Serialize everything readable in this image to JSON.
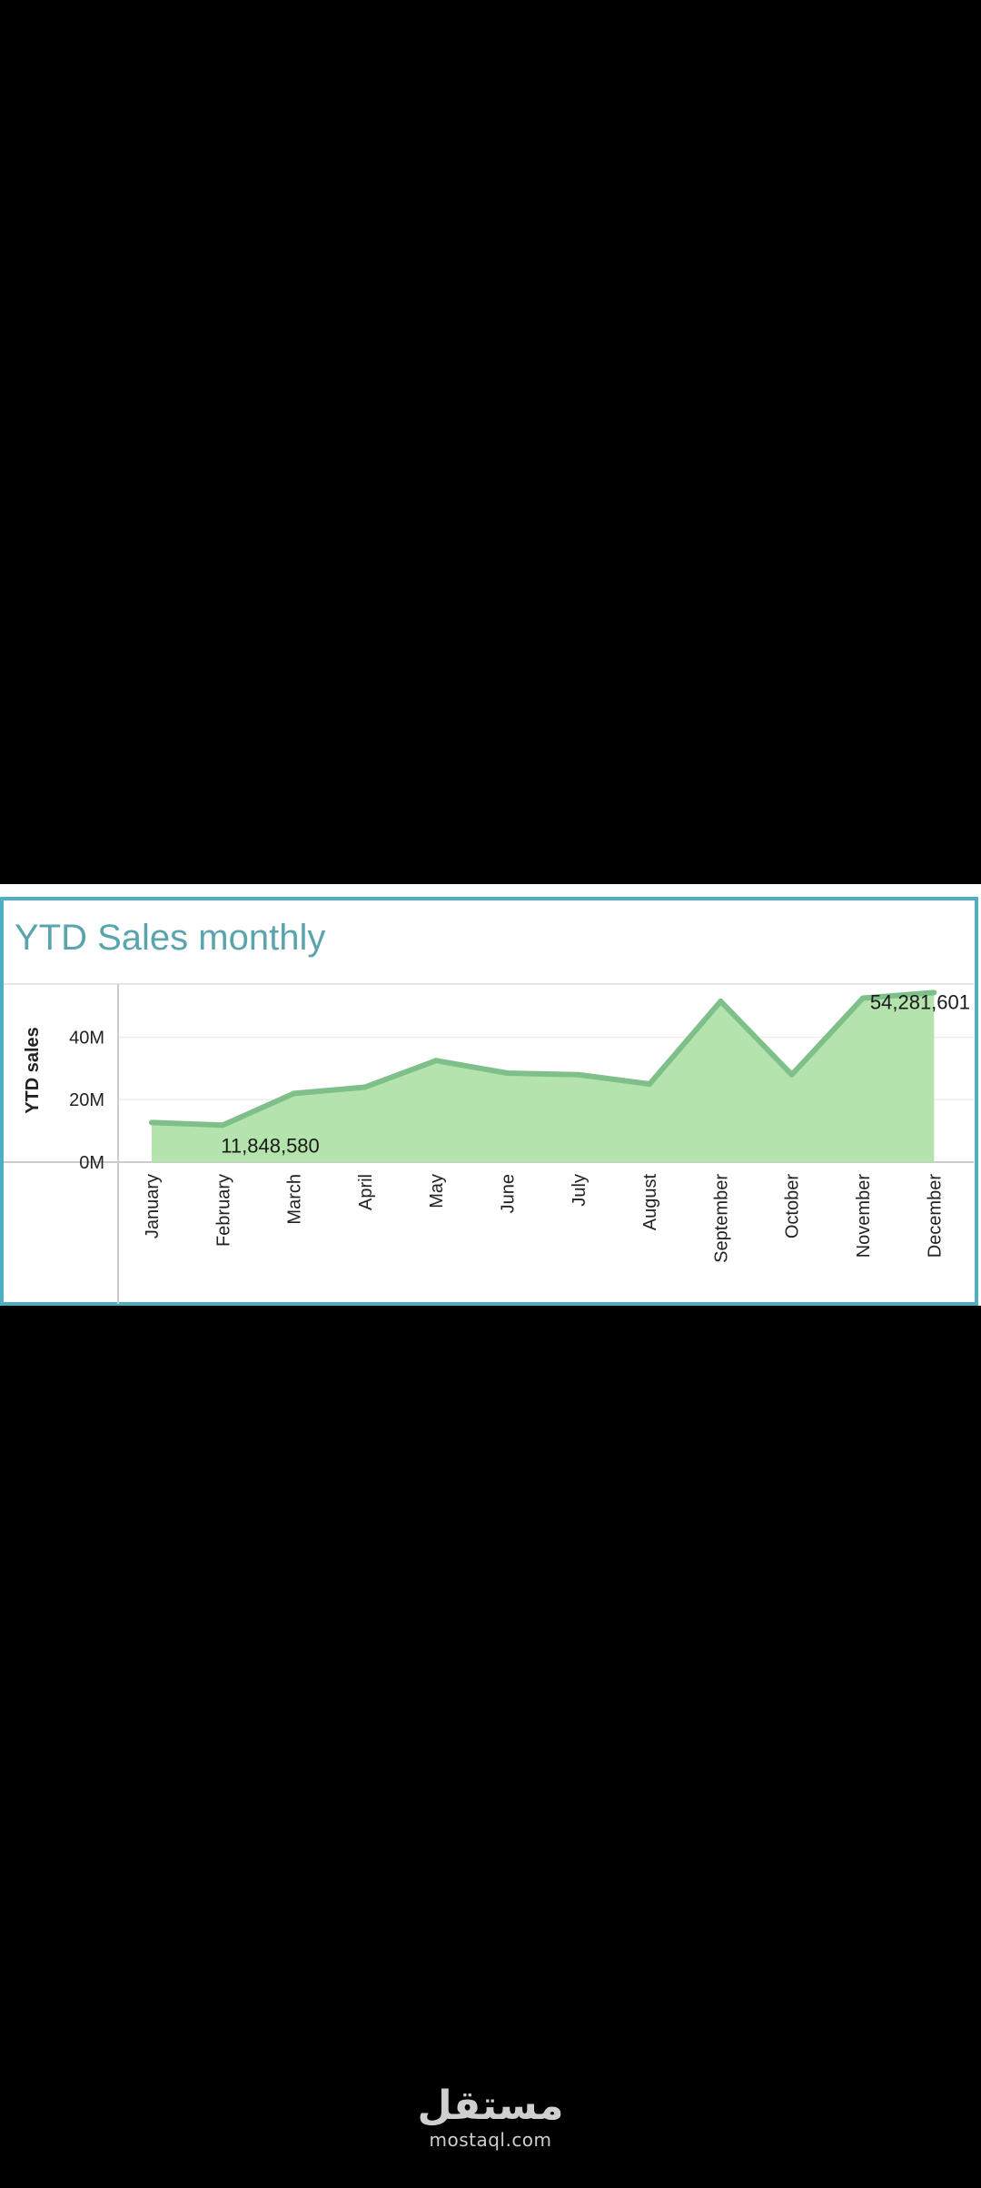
{
  "chart_data": {
    "type": "area",
    "title": "YTD Sales monthly",
    "xlabel": "",
    "ylabel": "YTD sales",
    "categories": [
      "January",
      "February",
      "March",
      "April",
      "May",
      "June",
      "July",
      "August",
      "September",
      "October",
      "November",
      "December"
    ],
    "values": [
      12700000,
      11848580,
      22000000,
      24000000,
      32500000,
      28500000,
      28000000,
      25000000,
      51500000,
      28000000,
      52500000,
      54281601
    ],
    "ylim": [
      0,
      57000000
    ],
    "yticks": [
      0,
      20000000,
      40000000
    ],
    "ytick_labels": [
      "0M",
      "20M",
      "40M"
    ],
    "data_labels": [
      {
        "index": 1,
        "text": "11,848,580"
      },
      {
        "index": 11,
        "text": "54,281,601"
      }
    ],
    "grid": true,
    "legend": "none",
    "colors": {
      "fill": "#b5e3ad",
      "line": "#7fbf8a",
      "title": "#5aa5ad",
      "frame": "#4faec4"
    }
  },
  "watermark": {
    "arabic": "مستقل",
    "latin": "mostaql.com"
  }
}
